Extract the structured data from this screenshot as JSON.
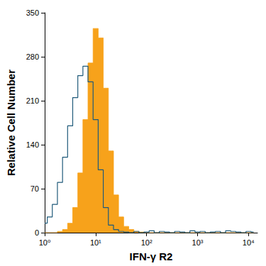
{
  "chart_data": {
    "type": "line",
    "x_label": "IFN-γ R2",
    "y_label": "Relative Cell Number",
    "log": "x",
    "grid": false,
    "xlim": [
      1,
      15000
    ],
    "xticks": [
      {
        "value": 1,
        "label": "10⁰"
      },
      {
        "value": 10,
        "label": "10¹"
      },
      {
        "value": 100,
        "label": "10²"
      },
      {
        "value": 1000,
        "label": "10³"
      },
      {
        "value": 10000,
        "label": "10⁴"
      }
    ],
    "ylim": [
      0,
      350
    ],
    "yticks": [
      0,
      70,
      140,
      210,
      280,
      350
    ],
    "x": [
      1,
      1.26,
      1.58,
      2.0,
      2.51,
      3.16,
      3.98,
      5.01,
      6.31,
      7.94,
      10,
      12.6,
      15.8,
      20,
      25.1,
      31.6,
      39.8,
      50.1,
      63.1,
      79.4,
      100,
      126,
      158,
      200,
      251,
      316,
      398,
      501,
      631,
      794,
      1000,
      1259,
      1585,
      1995,
      2512,
      3162,
      3981,
      5012,
      6310,
      7943,
      10000,
      12589
    ],
    "series": [
      {
        "type": "line",
        "color": "#1f5a7a",
        "values": [
          15,
          25,
          45,
          80,
          120,
          170,
          215,
          250,
          265,
          240,
          180,
          100,
          40,
          12,
          5,
          2,
          1,
          0,
          2,
          0,
          1,
          3,
          0,
          2,
          1,
          0,
          2,
          1,
          0,
          3,
          1,
          2,
          0,
          1,
          2,
          0,
          3,
          2,
          1,
          0,
          2,
          1
        ]
      },
      {
        "type": "area",
        "color": "#f7a21b",
        "values": [
          0,
          0,
          0,
          2,
          5,
          15,
          40,
          95,
          180,
          270,
          325,
          310,
          230,
          130,
          60,
          25,
          10,
          5,
          2,
          1,
          0,
          0,
          0,
          0,
          0,
          0,
          0,
          0,
          0,
          0,
          0,
          0,
          0,
          0,
          0,
          0,
          0,
          0,
          0,
          0,
          0,
          0
        ]
      }
    ]
  }
}
